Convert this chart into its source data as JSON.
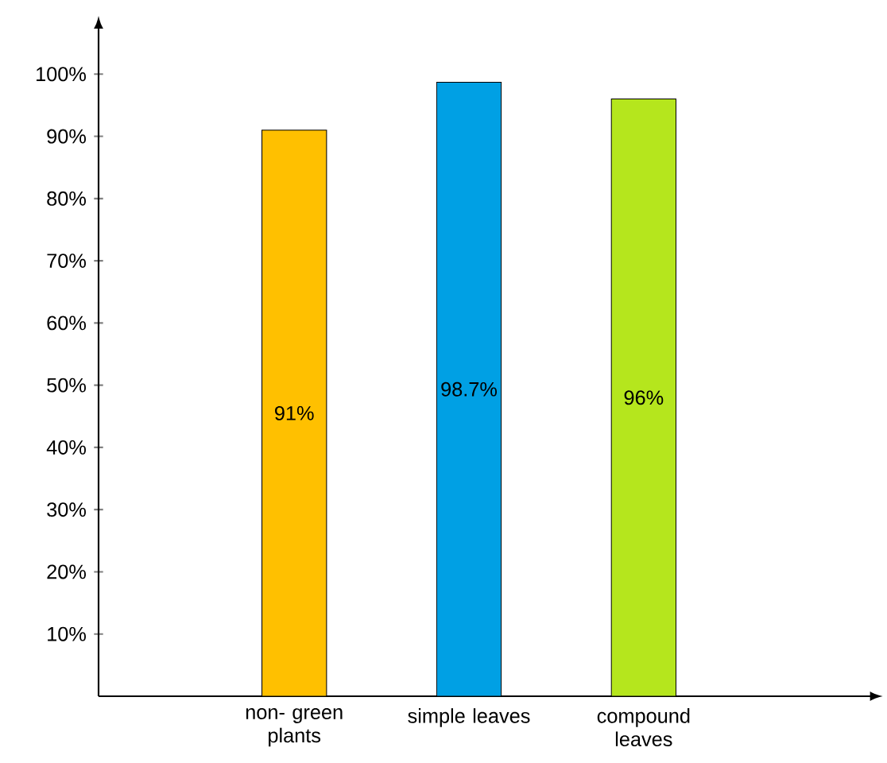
{
  "chart_data": {
    "type": "bar",
    "categories": [
      "non- green plants",
      "simple leaves",
      "compound leaves"
    ],
    "values": [
      91,
      98.7,
      96
    ],
    "colors": [
      "#ffc000",
      "#00a0e4",
      "#b5e61d"
    ],
    "value_labels": [
      "91%",
      "98.7%",
      "96%"
    ],
    "ylim": [
      0,
      108
    ],
    "yticks": [
      {
        "value": 10,
        "label": "10%"
      },
      {
        "value": 20,
        "label": "20%"
      },
      {
        "value": 30,
        "label": "30%"
      },
      {
        "value": 40,
        "label": "40%"
      },
      {
        "value": 50,
        "label": "50%"
      },
      {
        "value": 60,
        "label": "60%"
      },
      {
        "value": 70,
        "label": "70%"
      },
      {
        "value": 80,
        "label": "80%"
      },
      {
        "value": 90,
        "label": "90%"
      },
      {
        "value": 100,
        "label": "100%"
      }
    ],
    "grid": false
  }
}
